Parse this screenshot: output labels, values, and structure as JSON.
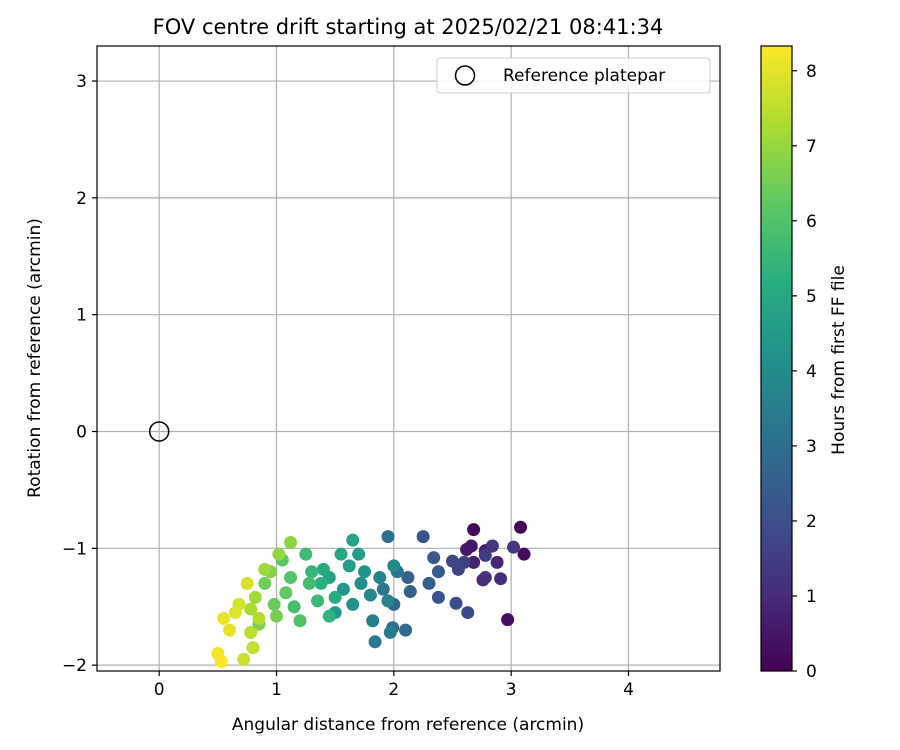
{
  "chart_data": {
    "type": "scatter",
    "title": "FOV centre drift starting at 2025/02/21 08:41:34",
    "xlabel": "Angular distance from reference (arcmin)",
    "ylabel": "Rotation from reference (arcmin)",
    "xlim": [
      -0.53,
      4.78
    ],
    "ylim": [
      -2.05,
      3.3
    ],
    "xticks": [
      0,
      1,
      2,
      3,
      4
    ],
    "yticks": [
      -2,
      -1,
      0,
      1,
      2,
      3
    ],
    "grid": true,
    "legend": {
      "position": "top-right",
      "entries": [
        "Reference platepar"
      ]
    },
    "colorbar": {
      "label": "Hours from first FF file",
      "colormap": "viridis",
      "min": 0,
      "max": 8.33,
      "ticks": [
        0,
        1,
        2,
        3,
        4,
        5,
        6,
        7,
        8
      ]
    },
    "series": [
      {
        "name": "Reference platepar",
        "marker": "open-circle",
        "points": [
          [
            0,
            0,
            null
          ]
        ]
      },
      {
        "marker": "filled-circle",
        "colored_by": "hours",
        "points": [
          [
            3.08,
            -0.82,
            0.05
          ],
          [
            2.68,
            -0.84,
            0.15
          ],
          [
            3.11,
            -1.05,
            0.25
          ],
          [
            2.97,
            -1.61,
            0.35
          ],
          [
            2.66,
            -0.98,
            0.45
          ],
          [
            2.62,
            -1.01,
            0.55
          ],
          [
            2.78,
            -1.02,
            0.65
          ],
          [
            2.68,
            -1.12,
            0.75
          ],
          [
            2.88,
            -1.12,
            0.85
          ],
          [
            2.76,
            -1.27,
            0.95
          ],
          [
            2.91,
            -1.26,
            1.05
          ],
          [
            2.78,
            -1.25,
            1.15
          ],
          [
            2.84,
            -0.98,
            1.25
          ],
          [
            3.02,
            -0.99,
            1.35
          ],
          [
            2.78,
            -1.06,
            1.45
          ],
          [
            2.6,
            -1.12,
            1.55
          ],
          [
            2.55,
            -1.18,
            1.65
          ],
          [
            2.5,
            -1.11,
            1.75
          ],
          [
            2.63,
            -1.55,
            1.85
          ],
          [
            2.53,
            -1.47,
            1.95
          ],
          [
            2.38,
            -1.42,
            2.05
          ],
          [
            2.25,
            -0.9,
            2.15
          ],
          [
            2.34,
            -1.08,
            2.25
          ],
          [
            2.38,
            -1.2,
            2.35
          ],
          [
            2.3,
            -1.3,
            2.45
          ],
          [
            2.12,
            -1.25,
            2.55
          ],
          [
            2.14,
            -1.37,
            2.65
          ],
          [
            2.0,
            -1.48,
            2.75
          ],
          [
            2.1,
            -1.7,
            2.85
          ],
          [
            1.99,
            -1.68,
            2.95
          ],
          [
            1.95,
            -0.9,
            3.05
          ],
          [
            2.03,
            -1.2,
            3.15
          ],
          [
            1.91,
            -1.35,
            3.25
          ],
          [
            1.84,
            -1.8,
            3.35
          ],
          [
            1.97,
            -1.72,
            3.45
          ],
          [
            1.82,
            -1.62,
            3.55
          ],
          [
            1.95,
            -1.45,
            3.65
          ],
          [
            1.88,
            -1.25,
            3.75
          ],
          [
            2.0,
            -1.15,
            3.85
          ],
          [
            1.8,
            -1.4,
            3.95
          ],
          [
            1.72,
            -1.3,
            4.05
          ],
          [
            1.65,
            -1.48,
            4.15
          ],
          [
            1.75,
            -1.2,
            4.25
          ],
          [
            1.57,
            -1.35,
            4.35
          ],
          [
            1.5,
            -1.55,
            4.45
          ],
          [
            1.7,
            -1.05,
            4.55
          ],
          [
            1.62,
            -1.15,
            4.65
          ],
          [
            1.45,
            -1.25,
            4.75
          ],
          [
            1.65,
            -0.93,
            4.85
          ],
          [
            1.55,
            -1.05,
            4.95
          ],
          [
            1.4,
            -1.18,
            5.05
          ],
          [
            1.5,
            -1.42,
            5.15
          ],
          [
            1.38,
            -1.3,
            5.25
          ],
          [
            1.45,
            -1.58,
            5.35
          ],
          [
            1.3,
            -1.2,
            5.45
          ],
          [
            1.35,
            -1.45,
            5.55
          ],
          [
            1.25,
            -1.05,
            5.65
          ],
          [
            1.28,
            -1.3,
            5.75
          ],
          [
            1.15,
            -1.5,
            5.85
          ],
          [
            1.2,
            -1.62,
            5.95
          ],
          [
            1.12,
            -1.25,
            6.05
          ],
          [
            1.05,
            -1.1,
            6.15
          ],
          [
            1.08,
            -1.38,
            6.25
          ],
          [
            0.98,
            -1.48,
            6.35
          ],
          [
            0.9,
            -1.3,
            6.45
          ],
          [
            1.0,
            -1.58,
            6.55
          ],
          [
            0.85,
            -1.65,
            6.65
          ],
          [
            0.95,
            -1.2,
            6.75
          ],
          [
            1.12,
            -0.95,
            6.85
          ],
          [
            1.02,
            -1.05,
            6.95
          ],
          [
            0.9,
            -1.18,
            7.05
          ],
          [
            0.82,
            -1.42,
            7.15
          ],
          [
            0.78,
            -1.52,
            7.25
          ],
          [
            0.85,
            -1.6,
            7.35
          ],
          [
            0.78,
            -1.72,
            7.45
          ],
          [
            0.8,
            -1.85,
            7.55
          ],
          [
            0.72,
            -1.95,
            7.65
          ],
          [
            0.68,
            -1.48,
            7.75
          ],
          [
            0.75,
            -1.3,
            7.85
          ],
          [
            0.65,
            -1.55,
            7.95
          ],
          [
            0.6,
            -1.7,
            8.05
          ],
          [
            0.55,
            -1.6,
            8.1
          ],
          [
            0.5,
            -1.9,
            8.2
          ],
          [
            0.53,
            -1.97,
            8.3
          ]
        ]
      }
    ]
  }
}
